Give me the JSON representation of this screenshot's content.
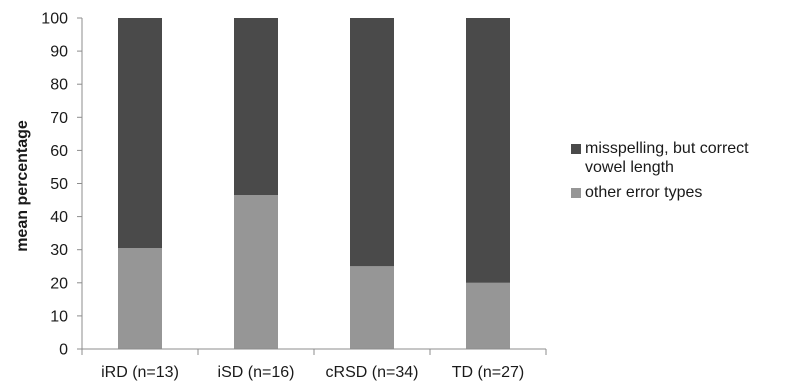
{
  "chart_data": {
    "type": "bar",
    "stacked": true,
    "title": "",
    "xlabel": "",
    "ylabel": "mean percentage",
    "ylim": [
      0,
      100
    ],
    "yticks": [
      0,
      10,
      20,
      30,
      40,
      50,
      60,
      70,
      80,
      90,
      100
    ],
    "categories": [
      "iRD (n=13)",
      "iSD (n=16)",
      "cRSD (n=34)",
      "TD (n=27)"
    ],
    "series": [
      {
        "name": "other error types",
        "color": "#969696",
        "values": [
          30.5,
          46.5,
          25,
          20
        ]
      },
      {
        "name": "misspelling, but correct vowel length",
        "color": "#4a4a4a",
        "values": [
          69.5,
          53.5,
          75,
          80
        ]
      }
    ],
    "legend": {
      "position": "right",
      "items": [
        {
          "label": "misspelling, but correct vowel length",
          "color": "#4a4a4a"
        },
        {
          "label": "other error types",
          "color": "#969696"
        }
      ]
    },
    "grid": false
  }
}
